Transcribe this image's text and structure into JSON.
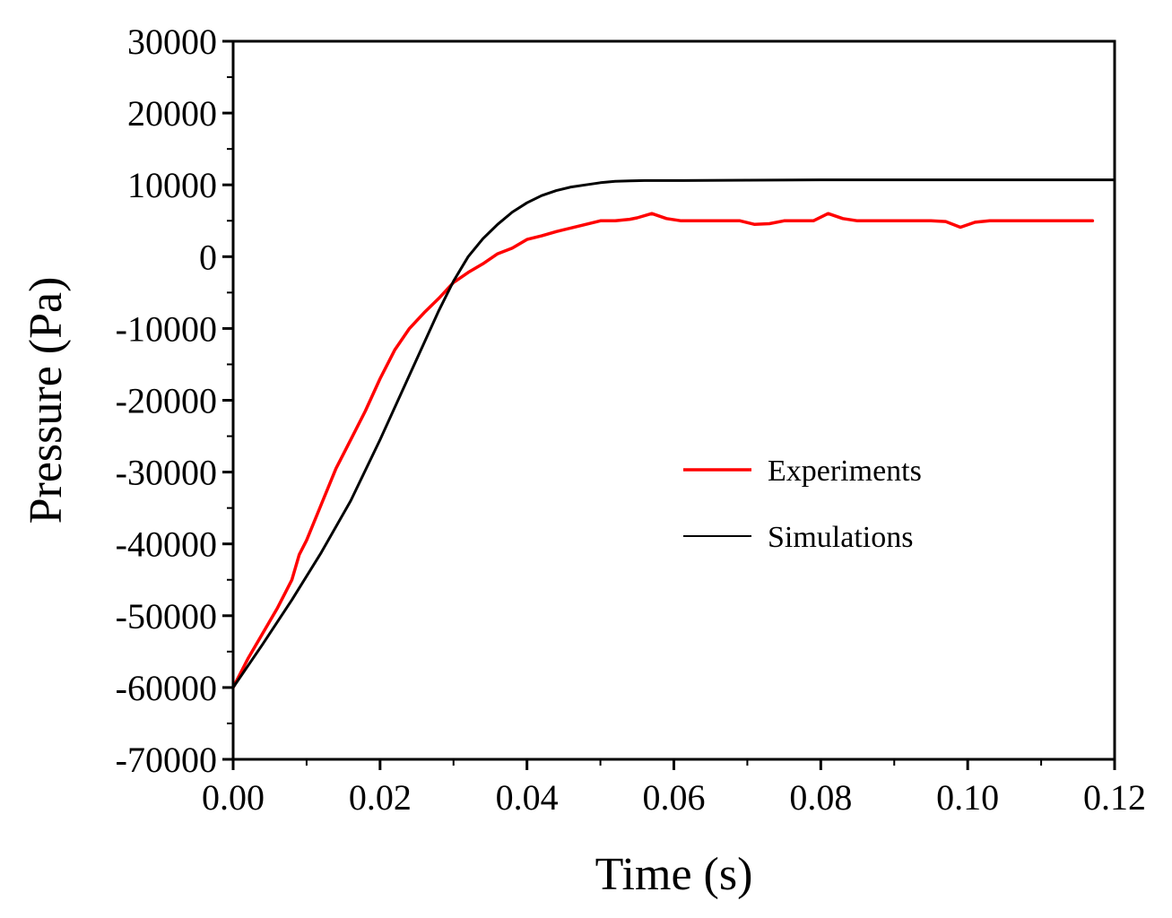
{
  "chart_data": {
    "type": "line",
    "title": "",
    "xlabel": "Time (s)",
    "ylabel": "Pressure (Pa)",
    "xlim": [
      0,
      0.12
    ],
    "ylim": [
      -70000,
      30000
    ],
    "xticks": [
      0,
      0.02,
      0.04,
      0.06,
      0.08,
      0.1,
      0.12
    ],
    "xtick_labels": [
      "0.00",
      "0.02",
      "0.04",
      "0.06",
      "0.08",
      "0.10",
      "0.12"
    ],
    "yticks": [
      -70000,
      -60000,
      -50000,
      -40000,
      -30000,
      -20000,
      -10000,
      0,
      10000,
      20000,
      30000
    ],
    "ytick_labels": [
      "-70000",
      "-60000",
      "-50000",
      "-40000",
      "-30000",
      "-20000",
      "-10000",
      "0",
      "10000",
      "20000",
      "30000"
    ],
    "grid": false,
    "legend_position": "center-right",
    "series": [
      {
        "name": "Experiments",
        "color": "#ff0000",
        "x": [
          0,
          0.002,
          0.004,
          0.006,
          0.008,
          0.009,
          0.01,
          0.012,
          0.014,
          0.016,
          0.018,
          0.02,
          0.022,
          0.024,
          0.026,
          0.028,
          0.03,
          0.032,
          0.034,
          0.036,
          0.038,
          0.04,
          0.042,
          0.044,
          0.046,
          0.048,
          0.05,
          0.052,
          0.054,
          0.055,
          0.057,
          0.059,
          0.061,
          0.063,
          0.065,
          0.067,
          0.069,
          0.071,
          0.073,
          0.075,
          0.077,
          0.079,
          0.081,
          0.083,
          0.085,
          0.087,
          0.09,
          0.093,
          0.095,
          0.097,
          0.099,
          0.101,
          0.103,
          0.105,
          0.108,
          0.111,
          0.114,
          0.117
        ],
        "y": [
          -60000,
          -56000,
          -52500,
          -49000,
          -45000,
          -41500,
          -39500,
          -34500,
          -29500,
          -25500,
          -21500,
          -17000,
          -13000,
          -10000,
          -7800,
          -5800,
          -3600,
          -2200,
          -1000,
          400,
          1200,
          2400,
          2900,
          3500,
          4000,
          4500,
          5000,
          5000,
          5200,
          5400,
          6000,
          5300,
          5000,
          5000,
          5000,
          5000,
          5000,
          4500,
          4600,
          5000,
          5000,
          5000,
          6000,
          5300,
          5000,
          5000,
          5000,
          5000,
          5000,
          4900,
          4100,
          4800,
          5000,
          5000,
          5000,
          5000,
          5000,
          5000
        ]
      },
      {
        "name": "Simulations",
        "color": "#000000",
        "x": [
          0,
          0.004,
          0.008,
          0.012,
          0.016,
          0.02,
          0.024,
          0.028,
          0.03,
          0.032,
          0.034,
          0.036,
          0.038,
          0.04,
          0.042,
          0.044,
          0.046,
          0.048,
          0.05,
          0.052,
          0.054,
          0.056,
          0.06,
          0.07,
          0.08,
          0.09,
          0.1,
          0.11,
          0.12
        ],
        "y": [
          -60000,
          -54000,
          -47800,
          -41200,
          -34000,
          -25500,
          -16500,
          -7500,
          -3400,
          0,
          2500,
          4500,
          6200,
          7500,
          8500,
          9200,
          9700,
          10000,
          10300,
          10500,
          10550,
          10600,
          10600,
          10650,
          10700,
          10700,
          10700,
          10700,
          10700
        ]
      }
    ]
  }
}
